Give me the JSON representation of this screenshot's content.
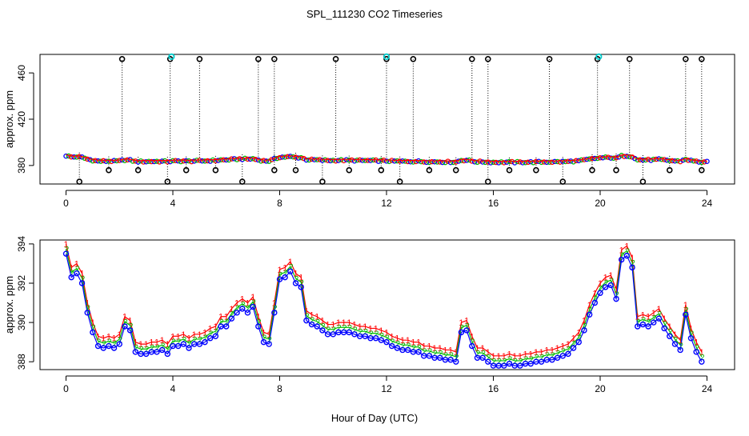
{
  "title": "SPL_111230  CO2 Timeseries",
  "xlabel": "Hour of Day (UTC)",
  "x_ticks": [
    0,
    4,
    8,
    12,
    16,
    20,
    24
  ],
  "colors": {
    "raw": "#000000",
    "series1": "#ff0000",
    "series2": "#00bb00",
    "series3": "#0000ff",
    "flag": "#00cccc",
    "mean": "#ff0000"
  },
  "chart_data": [
    {
      "type": "scatter",
      "name": "top-panel",
      "ylabel": "approx. ppm",
      "xlim": [
        0,
        24
      ],
      "ylim": [
        364,
        476
      ],
      "y_ticks": [
        380,
        420,
        460
      ],
      "upper_spikes": [
        2.1,
        3.9,
        5.0,
        7.2,
        7.8,
        10.1,
        12.0,
        13.0,
        15.2,
        15.8,
        18.1,
        19.9,
        21.1,
        23.2,
        23.8
      ],
      "lower_spikes": [
        0.5,
        1.6,
        2.7,
        3.8,
        4.5,
        5.6,
        6.6,
        7.8,
        8.6,
        9.6,
        10.6,
        11.8,
        12.5,
        13.6,
        14.6,
        15.8,
        16.6,
        17.6,
        18.6,
        19.7,
        20.6,
        21.6,
        22.6,
        23.8
      ],
      "flag_points": [
        {
          "x": 3.95,
          "y": 474
        },
        {
          "x": 12.0,
          "y": 474
        },
        {
          "x": 19.95,
          "y": 474
        }
      ]
    },
    {
      "type": "line",
      "name": "bottom-panel",
      "ylabel": "approx. ppm",
      "xlim": [
        0,
        24
      ],
      "ylim": [
        387.6,
        394.2
      ],
      "y_ticks": [
        388,
        390,
        392,
        394
      ],
      "series": [
        {
          "name": "1",
          "marker": "1",
          "offset": 0.5
        },
        {
          "name": "2",
          "marker": "2",
          "offset": 0.25
        },
        {
          "name": "3",
          "marker": "o",
          "offset": 0
        }
      ],
      "x": [
        0.0,
        0.2,
        0.4,
        0.6,
        0.8,
        1.0,
        1.2,
        1.4,
        1.6,
        1.8,
        2.0,
        2.2,
        2.4,
        2.6,
        2.8,
        3.0,
        3.2,
        3.4,
        3.6,
        3.8,
        4.0,
        4.2,
        4.4,
        4.6,
        4.8,
        5.0,
        5.2,
        5.4,
        5.6,
        5.8,
        6.0,
        6.2,
        6.4,
        6.6,
        6.8,
        7.0,
        7.2,
        7.4,
        7.6,
        7.8,
        8.0,
        8.2,
        8.4,
        8.6,
        8.8,
        9.0,
        9.2,
        9.4,
        9.6,
        9.8,
        10.0,
        10.2,
        10.4,
        10.6,
        10.8,
        11.0,
        11.2,
        11.4,
        11.6,
        11.8,
        12.0,
        12.2,
        12.4,
        12.6,
        12.8,
        13.0,
        13.2,
        13.4,
        13.6,
        13.8,
        14.0,
        14.2,
        14.4,
        14.6,
        14.8,
        15.0,
        15.2,
        15.4,
        15.6,
        15.8,
        16.0,
        16.2,
        16.4,
        16.6,
        16.8,
        17.0,
        17.2,
        17.4,
        17.6,
        17.8,
        18.0,
        18.2,
        18.4,
        18.6,
        18.8,
        19.0,
        19.2,
        19.4,
        19.6,
        19.8,
        20.0,
        20.2,
        20.4,
        20.6,
        20.8,
        21.0,
        21.2,
        21.4,
        21.6,
        21.8,
        22.0,
        22.2,
        22.4,
        22.6,
        22.8,
        23.0,
        23.2,
        23.4,
        23.6,
        23.8
      ],
      "y": [
        393.5,
        392.3,
        392.5,
        392.0,
        390.5,
        389.5,
        388.8,
        388.7,
        388.8,
        388.7,
        388.9,
        389.8,
        389.6,
        388.5,
        388.4,
        388.4,
        388.5,
        388.5,
        388.6,
        388.4,
        388.8,
        388.8,
        388.9,
        388.7,
        388.9,
        388.9,
        389.0,
        389.2,
        389.3,
        389.8,
        389.8,
        390.2,
        390.5,
        390.7,
        390.5,
        390.8,
        389.8,
        389.0,
        388.9,
        390.5,
        392.2,
        392.3,
        392.6,
        392.0,
        391.8,
        390.1,
        389.9,
        389.8,
        389.6,
        389.4,
        389.4,
        389.5,
        389.5,
        389.5,
        389.4,
        389.3,
        389.3,
        389.2,
        389.2,
        389.1,
        389.0,
        388.8,
        388.7,
        388.6,
        388.6,
        388.5,
        388.5,
        388.3,
        388.3,
        388.2,
        388.2,
        388.1,
        388.1,
        388.0,
        389.5,
        389.6,
        388.8,
        388.2,
        388.2,
        388.0,
        387.8,
        387.8,
        387.8,
        387.9,
        387.8,
        387.8,
        387.9,
        387.9,
        388.0,
        388.0,
        388.1,
        388.1,
        388.2,
        388.3,
        388.4,
        388.7,
        389.0,
        389.6,
        390.4,
        391.0,
        391.5,
        391.8,
        391.9,
        391.2,
        393.2,
        393.4,
        392.8,
        389.8,
        389.9,
        389.8,
        390.0,
        390.2,
        389.7,
        389.3,
        388.9,
        388.6,
        390.4,
        389.2,
        388.5,
        388.0
      ]
    }
  ]
}
